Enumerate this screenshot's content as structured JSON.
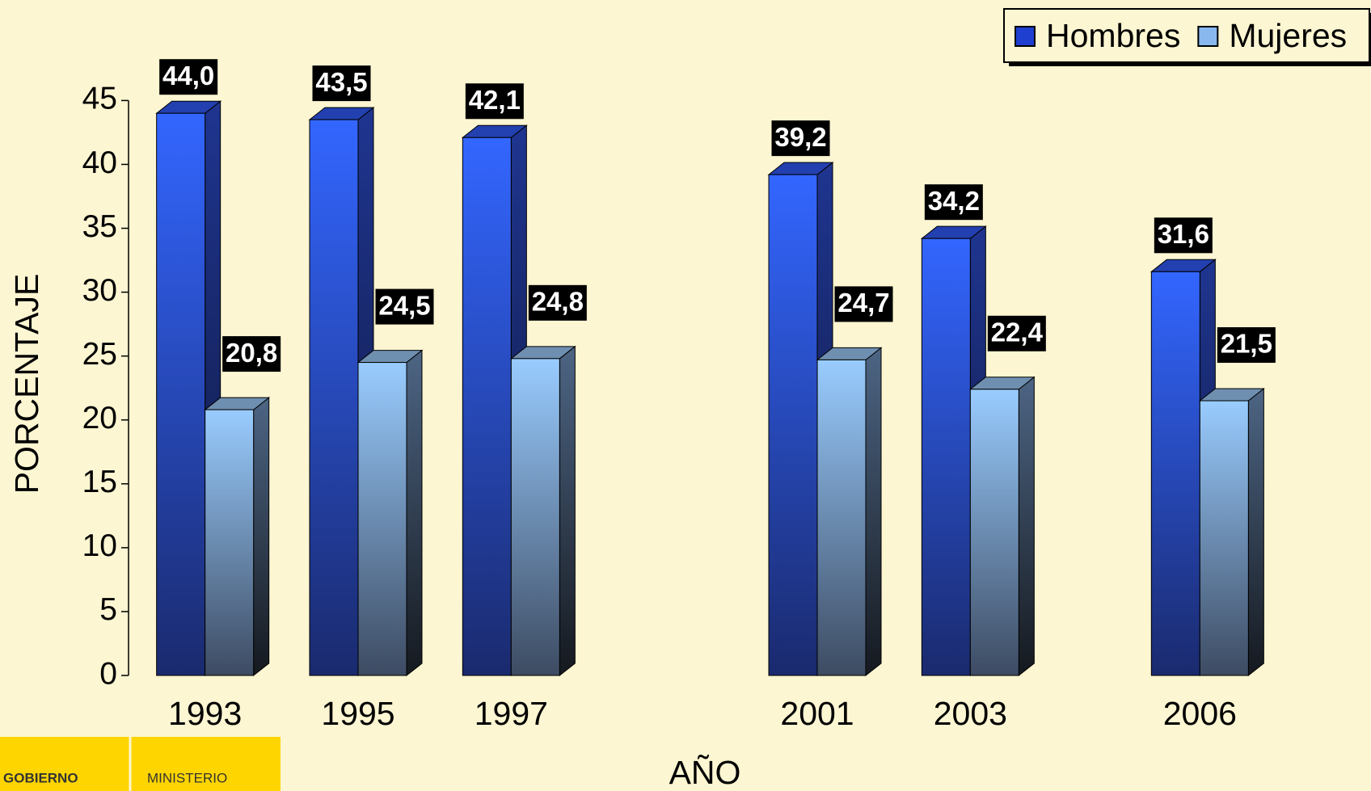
{
  "chart_data": {
    "type": "bar3d",
    "x": [
      1993,
      1995,
      1997,
      2001,
      2003,
      2006
    ],
    "xlim": [
      1992,
      2007
    ],
    "xlabel": "AÑO",
    "ylabel": "PORCENTAJE",
    "ylim": [
      0,
      45
    ],
    "yticks": [
      0,
      5,
      10,
      15,
      20,
      25,
      30,
      35,
      40,
      45
    ],
    "legend": "top-right",
    "series": [
      {
        "name": "Hombres",
        "color": "#3366ff",
        "values": [
          44.0,
          43.5,
          42.1,
          39.2,
          34.2,
          31.6
        ],
        "value_labels": [
          "44,0",
          "43,5",
          "42,1",
          "39,2",
          "34,2",
          "31,6"
        ]
      },
      {
        "name": "Mujeres",
        "color": "#99ccff",
        "values": [
          20.8,
          24.5,
          24.8,
          24.7,
          22.4,
          21.5
        ],
        "value_labels": [
          "20,8",
          "24,5",
          "24,8",
          "24,7",
          "22,4",
          "21,5"
        ]
      }
    ]
  },
  "logo": {
    "left": "GOBIERNO",
    "right": "MINISTERIO"
  }
}
